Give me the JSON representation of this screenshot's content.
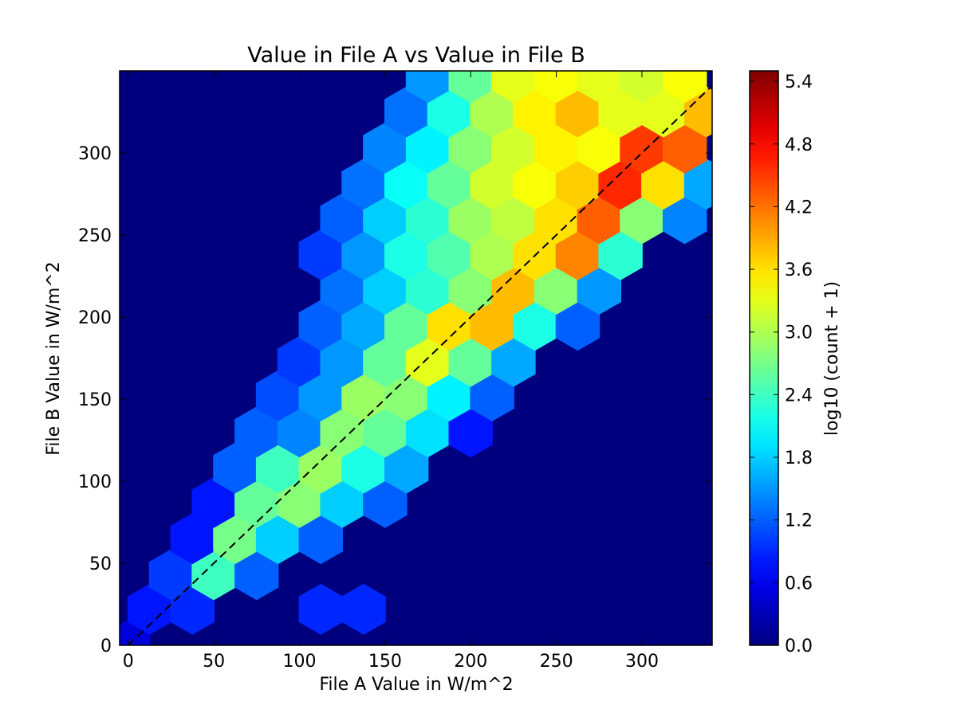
{
  "chart_data": {
    "type": "hexbin",
    "title": "Value in File A vs Value in File B",
    "xlabel": "File A Value in W/m^2",
    "ylabel": "File B Value in W/m^2",
    "colorbar_label": "log10 (count + 1)",
    "colormap": "jet",
    "background_color": "#00007f",
    "xlim": [
      -5,
      341
    ],
    "ylim": [
      0,
      350
    ],
    "xticks": [
      0,
      50,
      100,
      150,
      200,
      250,
      300
    ],
    "yticks": [
      0,
      50,
      100,
      150,
      200,
      250,
      300
    ],
    "clim": [
      0,
      5.5
    ],
    "cticks": [
      {
        "value": 0,
        "label": "0.0"
      },
      0.6,
      1.2,
      1.8,
      2.4,
      {
        "value": 3,
        "label": "3.0"
      },
      3.6,
      4.2,
      4.8,
      5.4
    ],
    "reference_line": {
      "x": [
        0,
        340
      ],
      "y": [
        0,
        340
      ],
      "color": "#000000"
    },
    "x": [
      0,
      12.5,
      37.5,
      112.5,
      137.5,
      25,
      50,
      75,
      37.5,
      62.5,
      87.5,
      112.5,
      50,
      75,
      100,
      125,
      150,
      62.5,
      87.5,
      112.5,
      137.5,
      162.5,
      75,
      100,
      125,
      150,
      175,
      200,
      87.5,
      112.5,
      137.5,
      162.5,
      187.5,
      212.5,
      100,
      125,
      150,
      175,
      200,
      225,
      112.5,
      137.5,
      162.5,
      187.5,
      212.5,
      237.5,
      262.5,
      125,
      150,
      175,
      200,
      225,
      250,
      275,
      112.5,
      137.5,
      162.5,
      187.5,
      212.5,
      237.5,
      262.5,
      287.5,
      125,
      150,
      175,
      200,
      225,
      250,
      275,
      300,
      325,
      137.5,
      162.5,
      187.5,
      212.5,
      237.5,
      262.5,
      287.5,
      312.5,
      337.5,
      150,
      175,
      200,
      225,
      250,
      275,
      300,
      325,
      162.5,
      187.5,
      212.5,
      237.5,
      262.5,
      287.5,
      312.5,
      337.5,
      175,
      200,
      225,
      250,
      275,
      300,
      325
    ],
    "y": [
      0,
      22,
      22,
      22,
      22,
      43,
      43,
      43,
      65,
      65,
      65,
      65,
      87,
      87,
      87,
      87,
      87,
      108,
      108,
      108,
      108,
      108,
      130,
      130,
      130,
      130,
      130,
      130,
      152,
      152,
      152,
      152,
      152,
      152,
      173,
      173,
      173,
      173,
      173,
      173,
      195,
      195,
      195,
      195,
      195,
      195,
      195,
      217,
      217,
      217,
      217,
      217,
      217,
      217,
      238,
      238,
      238,
      238,
      238,
      238,
      238,
      238,
      260,
      260,
      260,
      260,
      260,
      260,
      260,
      260,
      260,
      281,
      281,
      281,
      281,
      281,
      281,
      281,
      281,
      281,
      303,
      303,
      303,
      303,
      303,
      303,
      303,
      303,
      325,
      325,
      325,
      325,
      325,
      325,
      325,
      325,
      346,
      346,
      346,
      346,
      346,
      346,
      346
    ],
    "values": [
      0.5,
      0.8,
      0.9,
      0.9,
      0.9,
      1.0,
      2.4,
      1.2,
      0.8,
      2.7,
      1.8,
      1.2,
      0.8,
      2.6,
      2.8,
      1.8,
      1.2,
      1.2,
      2.4,
      2.9,
      2.2,
      1.6,
      1.2,
      1.4,
      2.8,
      2.6,
      1.9,
      0.8,
      1.1,
      1.5,
      2.9,
      2.8,
      2.0,
      1.2,
      1.0,
      1.5,
      2.6,
      3.3,
      2.6,
      1.6,
      1.2,
      1.6,
      2.6,
      3.6,
      3.8,
      2.2,
      1.2,
      1.3,
      1.8,
      2.3,
      2.8,
      3.8,
      2.8,
      1.5,
      1.0,
      1.5,
      2.2,
      2.5,
      3.0,
      3.6,
      4.1,
      2.3,
      1.2,
      1.8,
      2.3,
      2.9,
      3.1,
      3.6,
      4.3,
      2.8,
      1.4,
      1.3,
      2.1,
      2.6,
      3.2,
      3.4,
      3.7,
      4.6,
      3.6,
      1.6,
      1.4,
      2.0,
      2.8,
      3.2,
      3.5,
      3.4,
      4.5,
      4.3,
      1.3,
      2.2,
      3.0,
      3.5,
      3.8,
      3.3,
      3.3,
      3.8,
      1.5,
      2.6,
      3.3,
      3.4,
      3.3,
      3.2,
      3.4
    ]
  }
}
